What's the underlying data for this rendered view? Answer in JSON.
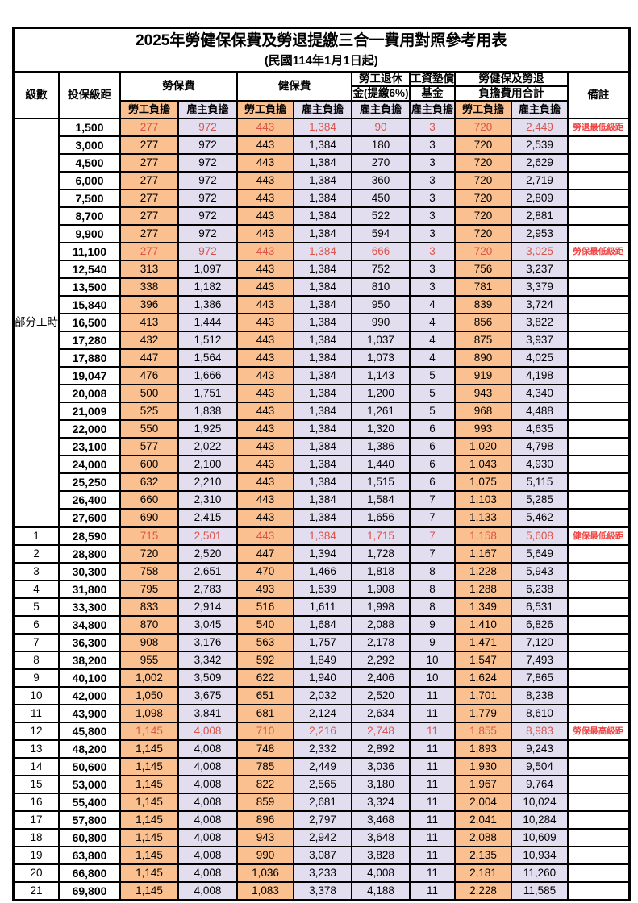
{
  "title": "2025年勞健保保費及勞退提繳三合一費用對照參考用表",
  "subtitle": "(民國114年1月1日起)",
  "header": {
    "level": "級數",
    "bracket": "投保級距",
    "labor_fee": "勞保費",
    "health_fee": "健保費",
    "pension_line1": "勞工退休",
    "pension_line2": "金(提繳6%)",
    "fund_line1": "工資墊償",
    "fund_line2": "基金",
    "total_line1": "勞健保及勞退",
    "total_line2": "負擔費用合計",
    "note": "備註",
    "employee_share": "勞工負擔",
    "employer_share": "雇主負擔"
  },
  "colors": {
    "employee_bg": "#FAC090",
    "employer_bg": "#E2DDEF",
    "highlight_value": "#DC5349",
    "note_text": "#EF4444",
    "border": "#000000"
  },
  "table": {
    "rows": [
      {
        "level": "部分工時",
        "level_rowspan": 23,
        "bracket": "1,500",
        "red": true,
        "note": "勞退最低級距",
        "values": [
          "277",
          "972",
          "443",
          "1,384",
          "90",
          "3",
          "720",
          "2,449"
        ]
      },
      {
        "level": null,
        "bracket": "3,000",
        "red": false,
        "note": "",
        "values": [
          "277",
          "972",
          "443",
          "1,384",
          "180",
          "3",
          "720",
          "2,539"
        ]
      },
      {
        "level": null,
        "bracket": "4,500",
        "red": false,
        "note": "",
        "values": [
          "277",
          "972",
          "443",
          "1,384",
          "270",
          "3",
          "720",
          "2,629"
        ]
      },
      {
        "level": null,
        "bracket": "6,000",
        "red": false,
        "note": "",
        "values": [
          "277",
          "972",
          "443",
          "1,384",
          "360",
          "3",
          "720",
          "2,719"
        ]
      },
      {
        "level": null,
        "bracket": "7,500",
        "red": false,
        "note": "",
        "values": [
          "277",
          "972",
          "443",
          "1,384",
          "450",
          "3",
          "720",
          "2,809"
        ]
      },
      {
        "level": null,
        "bracket": "8,700",
        "red": false,
        "note": "",
        "values": [
          "277",
          "972",
          "443",
          "1,384",
          "522",
          "3",
          "720",
          "2,881"
        ]
      },
      {
        "level": null,
        "bracket": "9,900",
        "red": false,
        "note": "",
        "values": [
          "277",
          "972",
          "443",
          "1,384",
          "594",
          "3",
          "720",
          "2,953"
        ]
      },
      {
        "level": null,
        "bracket": "11,100",
        "red": true,
        "note": "勞保最低級距",
        "values": [
          "277",
          "972",
          "443",
          "1,384",
          "666",
          "3",
          "720",
          "3,025"
        ]
      },
      {
        "level": null,
        "bracket": "12,540",
        "red": false,
        "note": "",
        "values": [
          "313",
          "1,097",
          "443",
          "1,384",
          "752",
          "3",
          "756",
          "3,237"
        ]
      },
      {
        "level": null,
        "bracket": "13,500",
        "red": false,
        "note": "",
        "values": [
          "338",
          "1,182",
          "443",
          "1,384",
          "810",
          "3",
          "781",
          "3,379"
        ]
      },
      {
        "level": null,
        "bracket": "15,840",
        "red": false,
        "note": "",
        "values": [
          "396",
          "1,386",
          "443",
          "1,384",
          "950",
          "4",
          "839",
          "3,724"
        ]
      },
      {
        "level": null,
        "bracket": "16,500",
        "red": false,
        "note": "",
        "values": [
          "413",
          "1,444",
          "443",
          "1,384",
          "990",
          "4",
          "856",
          "3,822"
        ]
      },
      {
        "level": null,
        "bracket": "17,280",
        "red": false,
        "note": "",
        "values": [
          "432",
          "1,512",
          "443",
          "1,384",
          "1,037",
          "4",
          "875",
          "3,937"
        ]
      },
      {
        "level": null,
        "bracket": "17,880",
        "red": false,
        "note": "",
        "values": [
          "447",
          "1,564",
          "443",
          "1,384",
          "1,073",
          "4",
          "890",
          "4,025"
        ]
      },
      {
        "level": null,
        "bracket": "19,047",
        "red": false,
        "note": "",
        "values": [
          "476",
          "1,666",
          "443",
          "1,384",
          "1,143",
          "5",
          "919",
          "4,198"
        ]
      },
      {
        "level": null,
        "bracket": "20,008",
        "red": false,
        "note": "",
        "values": [
          "500",
          "1,751",
          "443",
          "1,384",
          "1,200",
          "5",
          "943",
          "4,340"
        ]
      },
      {
        "level": null,
        "bracket": "21,009",
        "red": false,
        "note": "",
        "values": [
          "525",
          "1,838",
          "443",
          "1,384",
          "1,261",
          "5",
          "968",
          "4,488"
        ]
      },
      {
        "level": null,
        "bracket": "22,000",
        "red": false,
        "note": "",
        "values": [
          "550",
          "1,925",
          "443",
          "1,384",
          "1,320",
          "6",
          "993",
          "4,635"
        ]
      },
      {
        "level": null,
        "bracket": "23,100",
        "red": false,
        "note": "",
        "values": [
          "577",
          "2,022",
          "443",
          "1,384",
          "1,386",
          "6",
          "1,020",
          "4,798"
        ]
      },
      {
        "level": null,
        "bracket": "24,000",
        "red": false,
        "note": "",
        "values": [
          "600",
          "2,100",
          "443",
          "1,384",
          "1,440",
          "6",
          "1,043",
          "4,930"
        ]
      },
      {
        "level": null,
        "bracket": "25,250",
        "red": false,
        "note": "",
        "values": [
          "632",
          "2,210",
          "443",
          "1,384",
          "1,515",
          "6",
          "1,075",
          "5,115"
        ]
      },
      {
        "level": null,
        "bracket": "26,400",
        "red": false,
        "note": "",
        "values": [
          "660",
          "2,310",
          "443",
          "1,384",
          "1,584",
          "7",
          "1,103",
          "5,285"
        ]
      },
      {
        "level": null,
        "bracket": "27,600",
        "red": false,
        "note": "",
        "values": [
          "690",
          "2,415",
          "443",
          "1,384",
          "1,656",
          "7",
          "1,133",
          "5,462"
        ]
      },
      {
        "level": "1",
        "bracket": "28,590",
        "red": true,
        "sep": true,
        "note": "健保最低級距",
        "values": [
          "715",
          "2,501",
          "443",
          "1,384",
          "1,715",
          "7",
          "1,158",
          "5,608"
        ]
      },
      {
        "level": "2",
        "bracket": "28,800",
        "red": false,
        "note": "",
        "values": [
          "720",
          "2,520",
          "447",
          "1,394",
          "1,728",
          "7",
          "1,167",
          "5,649"
        ]
      },
      {
        "level": "3",
        "bracket": "30,300",
        "red": false,
        "note": "",
        "values": [
          "758",
          "2,651",
          "470",
          "1,466",
          "1,818",
          "8",
          "1,228",
          "5,943"
        ]
      },
      {
        "level": "4",
        "bracket": "31,800",
        "red": false,
        "note": "",
        "values": [
          "795",
          "2,783",
          "493",
          "1,539",
          "1,908",
          "8",
          "1,288",
          "6,238"
        ]
      },
      {
        "level": "5",
        "bracket": "33,300",
        "red": false,
        "note": "",
        "values": [
          "833",
          "2,914",
          "516",
          "1,611",
          "1,998",
          "8",
          "1,349",
          "6,531"
        ]
      },
      {
        "level": "6",
        "bracket": "34,800",
        "red": false,
        "note": "",
        "values": [
          "870",
          "3,045",
          "540",
          "1,684",
          "2,088",
          "9",
          "1,410",
          "6,826"
        ]
      },
      {
        "level": "7",
        "bracket": "36,300",
        "red": false,
        "note": "",
        "values": [
          "908",
          "3,176",
          "563",
          "1,757",
          "2,178",
          "9",
          "1,471",
          "7,120"
        ]
      },
      {
        "level": "8",
        "bracket": "38,200",
        "red": false,
        "note": "",
        "values": [
          "955",
          "3,342",
          "592",
          "1,849",
          "2,292",
          "10",
          "1,547",
          "7,493"
        ]
      },
      {
        "level": "9",
        "bracket": "40,100",
        "red": false,
        "note": "",
        "values": [
          "1,002",
          "3,509",
          "622",
          "1,940",
          "2,406",
          "10",
          "1,624",
          "7,865"
        ]
      },
      {
        "level": "10",
        "bracket": "42,000",
        "red": false,
        "note": "",
        "values": [
          "1,050",
          "3,675",
          "651",
          "2,032",
          "2,520",
          "11",
          "1,701",
          "8,238"
        ]
      },
      {
        "level": "11",
        "bracket": "43,900",
        "red": false,
        "note": "",
        "values": [
          "1,098",
          "3,841",
          "681",
          "2,124",
          "2,634",
          "11",
          "1,779",
          "8,610"
        ]
      },
      {
        "level": "12",
        "bracket": "45,800",
        "red": true,
        "note": "勞保最高級距",
        "values": [
          "1,145",
          "4,008",
          "710",
          "2,216",
          "2,748",
          "11",
          "1,855",
          "8,983"
        ]
      },
      {
        "level": "13",
        "bracket": "48,200",
        "red": false,
        "note": "",
        "values": [
          "1,145",
          "4,008",
          "748",
          "2,332",
          "2,892",
          "11",
          "1,893",
          "9,243"
        ]
      },
      {
        "level": "14",
        "bracket": "50,600",
        "red": false,
        "note": "",
        "values": [
          "1,145",
          "4,008",
          "785",
          "2,449",
          "3,036",
          "11",
          "1,930",
          "9,504"
        ]
      },
      {
        "level": "15",
        "bracket": "53,000",
        "red": false,
        "note": "",
        "values": [
          "1,145",
          "4,008",
          "822",
          "2,565",
          "3,180",
          "11",
          "1,967",
          "9,764"
        ]
      },
      {
        "level": "16",
        "bracket": "55,400",
        "red": false,
        "note": "",
        "values": [
          "1,145",
          "4,008",
          "859",
          "2,681",
          "3,324",
          "11",
          "2,004",
          "10,024"
        ]
      },
      {
        "level": "17",
        "bracket": "57,800",
        "red": false,
        "note": "",
        "values": [
          "1,145",
          "4,008",
          "896",
          "2,797",
          "3,468",
          "11",
          "2,041",
          "10,284"
        ]
      },
      {
        "level": "18",
        "bracket": "60,800",
        "red": false,
        "note": "",
        "values": [
          "1,145",
          "4,008",
          "943",
          "2,942",
          "3,648",
          "11",
          "2,088",
          "10,609"
        ]
      },
      {
        "level": "19",
        "bracket": "63,800",
        "red": false,
        "note": "",
        "values": [
          "1,145",
          "4,008",
          "990",
          "3,087",
          "3,828",
          "11",
          "2,135",
          "10,934"
        ]
      },
      {
        "level": "20",
        "bracket": "66,800",
        "red": false,
        "note": "",
        "values": [
          "1,145",
          "4,008",
          "1,036",
          "3,233",
          "4,008",
          "11",
          "2,181",
          "11,260"
        ]
      },
      {
        "level": "21",
        "bracket": "69,800",
        "red": false,
        "note": "",
        "values": [
          "1,145",
          "4,008",
          "1,083",
          "3,378",
          "4,188",
          "11",
          "2,228",
          "11,585"
        ]
      }
    ]
  }
}
